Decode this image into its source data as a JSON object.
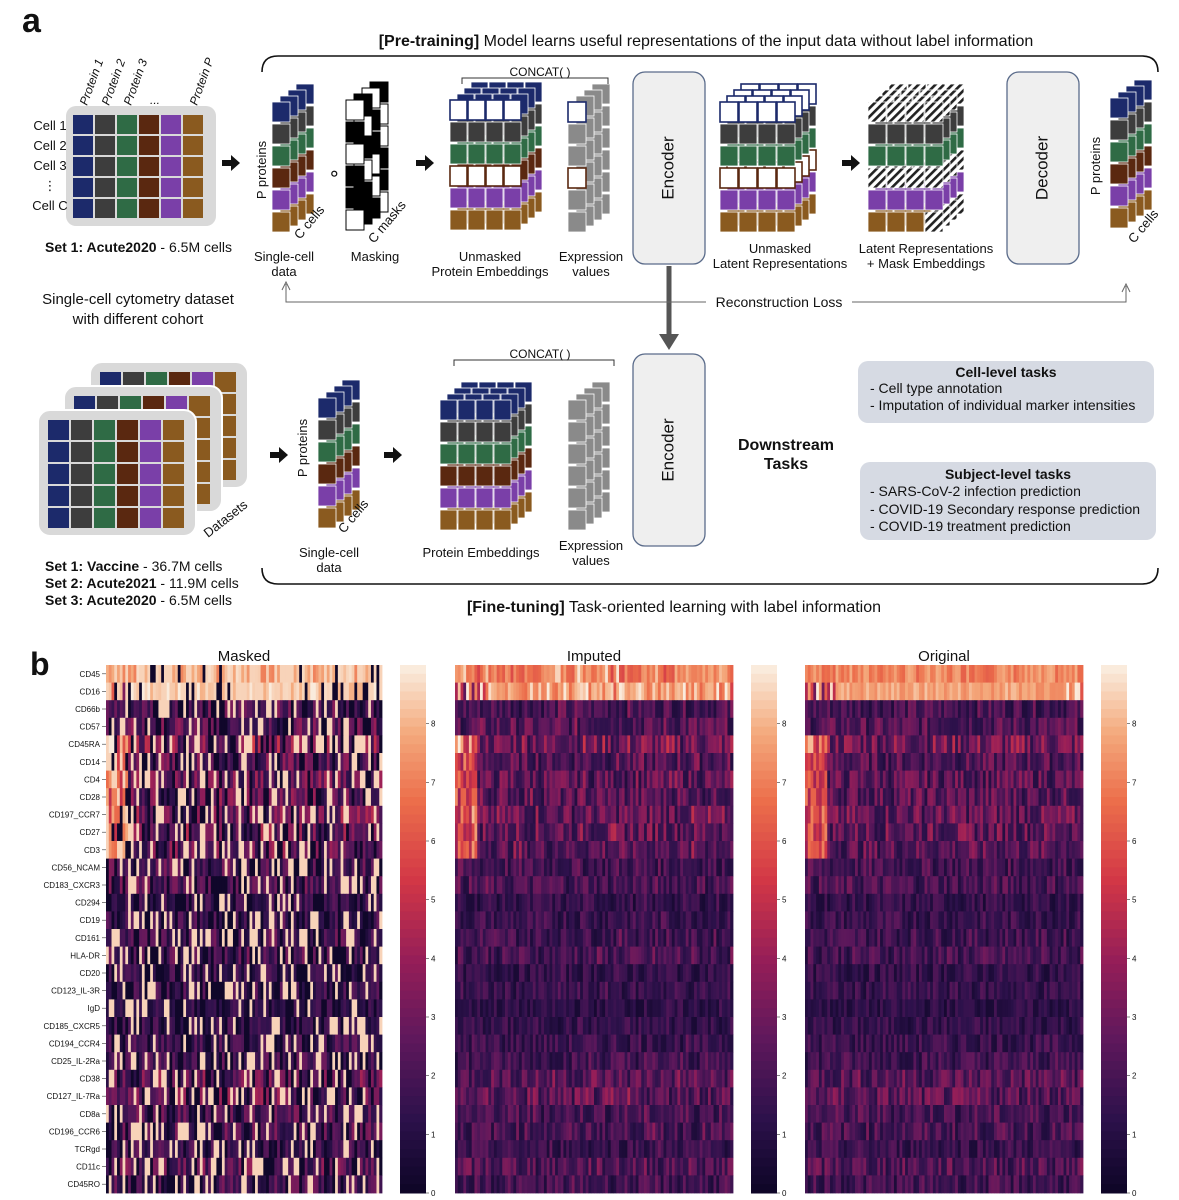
{
  "panel_a": {
    "letter": "a",
    "pretrain_title": {
      "bold": "[Pre-training]",
      "rest": " Model learns useful representations of the input data without label information"
    },
    "finetune_title": {
      "bold": "[Fine-tuning]",
      "rest": " Task-oriented learning with label information"
    },
    "protein_labels": [
      "Protein 1",
      "Protein 2",
      "Protein 3",
      "...",
      "Protein P"
    ],
    "cell_labels": [
      "Cell 1",
      "Cell 2",
      "Cell 3",
      "⋮",
      "Cell C"
    ],
    "set_pretrain": {
      "bold": "Set 1: Acute2020",
      "rest": " - 6.5M cells"
    },
    "dataset_caption": [
      "Single-cell cytometry dataset",
      "with different cohort"
    ],
    "sets_finetune": [
      {
        "bold": "Set 1: Vaccine",
        "rest": " - 36.7M cells"
      },
      {
        "bold": "Set 2: Acute2021",
        "rest": " - 11.9M cells"
      },
      {
        "bold": "Set 3: Acute2020",
        "rest": " - 6.5M cells"
      }
    ],
    "datasets_label": "Datasets",
    "p_proteins": "P proteins",
    "c_cells": "C cells",
    "c_masks": "C masks",
    "single_cell_data": [
      "Single-cell",
      "data"
    ],
    "masking": "Masking",
    "concat": "CONCAT( )",
    "unmasked_protein_embeddings": [
      "Unmasked",
      "Protein Embeddings"
    ],
    "protein_embeddings": "Protein Embeddings",
    "expression_values": [
      "Expression",
      "values"
    ],
    "encoder": "Encoder",
    "decoder": "Decoder",
    "unmasked_latent": [
      "Unmasked",
      "Latent Representations"
    ],
    "latent_mask": [
      "Latent Representations",
      "+ Mask Embeddings"
    ],
    "reconstruction_loss": "Reconstruction Loss",
    "hadamard": "∘",
    "downstream": [
      "Downstream",
      "Tasks"
    ],
    "cell_tasks": {
      "title": "Cell-level tasks",
      "items": [
        "-  Cell type annotation",
        "-  Imputation of individual marker intensities"
      ]
    },
    "subject_tasks": {
      "title": "Subject-level tasks",
      "items": [
        "-  SARS-CoV-2 infection prediction",
        "-  COVID-19 Secondary response prediction",
        "-  COVID-19 treatment prediction"
      ]
    }
  },
  "colors": {
    "navy": "#1c2a6b",
    "dark": "#3d3d3d",
    "green": "#2f6b45",
    "brown": "#5a2810",
    "purple": "#7a3fa8",
    "ochre": "#8a5a1f",
    "encoder_text": "#b22222",
    "downstream_text": "#1c2a6b",
    "task_box": "#d6dae3",
    "grey_box": "#d9d9d9"
  },
  "chart_data": {
    "type": "heatmap",
    "panel_letter": "b",
    "titles": [
      "Masked",
      "Imputed",
      "Original"
    ],
    "markers": [
      "CD45",
      "CD16",
      "CD66b",
      "CD57",
      "CD45RA",
      "CD14",
      "CD4",
      "CD28",
      "CD197_CCR7",
      "CD27",
      "CD3",
      "CD56_NCAM",
      "CD183_CXCR3",
      "CD294",
      "CD19",
      "CD161",
      "HLA-DR",
      "CD20",
      "CD123_IL-3R",
      "IgD",
      "CD185_CXCR5",
      "CD194_CCR4",
      "CD25_IL-2Ra",
      "CD38",
      "CD127_IL-7Ra",
      "CD8a",
      "CD196_CCR6",
      "TCRgd",
      "CD11c",
      "CD45RO"
    ],
    "marker_mean_intensity": [
      7.3,
      7.0,
      2.0,
      2.2,
      3.0,
      2.2,
      2.4,
      2.4,
      2.6,
      2.6,
      2.4,
      1.9,
      2.0,
      1.4,
      1.6,
      1.8,
      1.9,
      1.4,
      1.5,
      1.2,
      1.4,
      1.6,
      1.8,
      2.4,
      2.4,
      2.0,
      2.0,
      1.6,
      2.2,
      1.8
    ],
    "n_cells_shown": 100,
    "colorbar": {
      "min": 0,
      "max": 9,
      "ticks": [
        "0",
        "1",
        "2",
        "3",
        "4",
        "5",
        "6",
        "7",
        "8"
      ]
    }
  }
}
